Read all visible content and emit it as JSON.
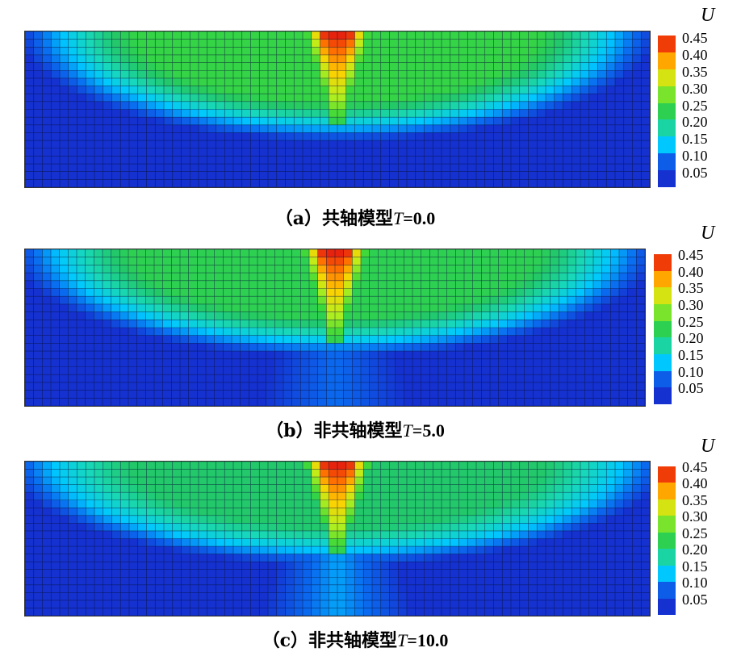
{
  "chart_data": [
    {
      "type": "heatmap",
      "caption": {
        "prefix": "（a）共轴模型",
        "var": "T",
        "value": "=0.0"
      },
      "colorbar": {
        "label": "U",
        "ticks": [
          "0.45",
          "0.40",
          "0.35",
          "0.30",
          "0.25",
          "0.20",
          "0.15",
          "0.10",
          "0.05"
        ],
        "range": [
          0.05,
          0.45
        ]
      },
      "params": {
        "T": 0.0
      },
      "field": {
        "max_value": 0.45,
        "min_value": 0.05,
        "bowl_value": 0.24,
        "center_value": 0.45
      }
    },
    {
      "type": "heatmap",
      "caption": {
        "prefix": "（b）非共轴模型",
        "var": "T",
        "value": "=5.0"
      },
      "colorbar": {
        "label": "U",
        "ticks": [
          "0.45",
          "0.40",
          "0.35",
          "0.30",
          "0.25",
          "0.20",
          "0.15",
          "0.10",
          "0.05"
        ],
        "range": [
          0.05,
          0.45
        ]
      },
      "params": {
        "T": 5.0
      },
      "field": {
        "max_value": 0.45,
        "min_value": 0.05,
        "bowl_value": 0.23,
        "center_value": 0.45
      }
    },
    {
      "type": "heatmap",
      "caption": {
        "prefix": "（c）非共轴模型",
        "var": "T",
        "value": "=10.0"
      },
      "colorbar": {
        "label": "U",
        "ticks": [
          "0.45",
          "0.40",
          "0.35",
          "0.30",
          "0.25",
          "0.20",
          "0.15",
          "0.10",
          "0.05"
        ],
        "range": [
          0.05,
          0.45
        ]
      },
      "params": {
        "T": 10.0
      },
      "field": {
        "max_value": 0.45,
        "min_value": 0.05,
        "bowl_value": 0.21,
        "center_value": 0.45
      }
    }
  ],
  "colors": {
    "scale": [
      "#1531d0",
      "#0a6cf0",
      "#00c8ff",
      "#18d8b8",
      "#22c86a",
      "#3ad83a",
      "#b8f01c",
      "#ffd000",
      "#ff6a00",
      "#e01010"
    ]
  }
}
